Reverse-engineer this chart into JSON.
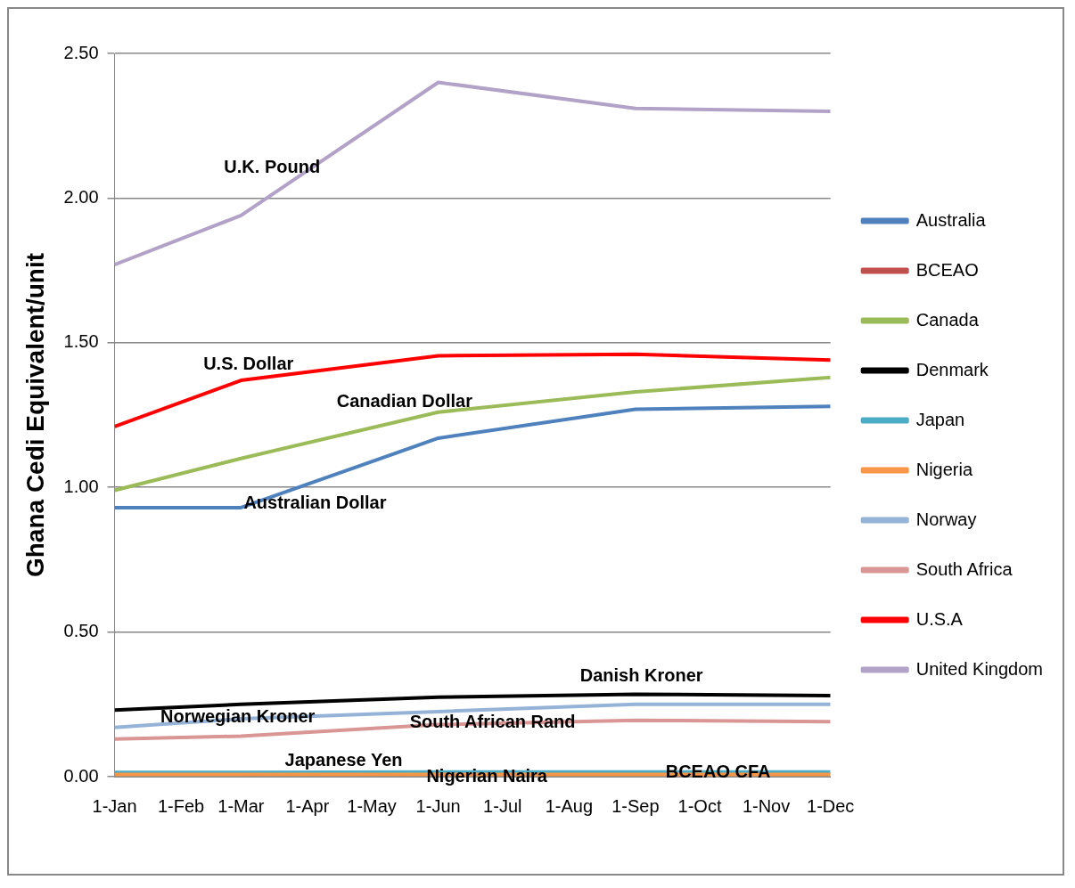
{
  "chart_data": {
    "type": "line",
    "ylabel": "Ghana Cedi Equivalent/unit",
    "x": [
      "--01-01",
      "--03-01",
      "--06-01",
      "--09-01",
      "--12-01"
    ],
    "xlim": [
      "--01-01",
      "--12-01"
    ],
    "xticks": [
      {
        "value": "--01-01",
        "label": "1-Jan"
      },
      {
        "value": "--02-01",
        "label": "1-Feb"
      },
      {
        "value": "--03-01",
        "label": "1-Mar"
      },
      {
        "value": "--04-01",
        "label": "1-Apr"
      },
      {
        "value": "--05-01",
        "label": "1-May"
      },
      {
        "value": "--06-01",
        "label": "1-Jun"
      },
      {
        "value": "--07-01",
        "label": "1-Jul"
      },
      {
        "value": "--08-01",
        "label": "1-Aug"
      },
      {
        "value": "--09-01",
        "label": "1-Sep"
      },
      {
        "value": "--10-01",
        "label": "1-Oct"
      },
      {
        "value": "--11-01",
        "label": "1-Nov"
      },
      {
        "value": "--12-01",
        "label": "1-Dec"
      }
    ],
    "ylim": [
      0,
      2.5
    ],
    "yticks": [
      {
        "value": 0,
        "label": "0.00"
      },
      {
        "value": 0.5,
        "label": "0.50"
      },
      {
        "value": 1,
        "label": "1.00"
      },
      {
        "value": 1.5,
        "label": "1.50"
      },
      {
        "value": 2,
        "label": "2.00"
      },
      {
        "value": 2.5,
        "label": "2.50"
      }
    ],
    "grid": "y",
    "legend": "right",
    "marker": "none",
    "line_style": "solid",
    "series": [
      {
        "name": "Australia",
        "color": "#4f81bd",
        "values": [
          0.93,
          0.93,
          1.17,
          1.27,
          1.28
        ]
      },
      {
        "name": "BCEAO",
        "color": "#c0504d",
        "values": [
          null,
          null,
          null,
          null,
          null
        ]
      },
      {
        "name": "Canada",
        "color": "#9bbb59",
        "values": [
          0.99,
          1.1,
          1.26,
          1.33,
          1.38
        ]
      },
      {
        "name": "Denmark",
        "color": "#000000",
        "values": [
          0.23,
          0.25,
          0.275,
          0.285,
          0.28
        ]
      },
      {
        "name": "Japan",
        "color": "#4bacc6",
        "values": [
          0.015,
          0.015,
          0.016,
          0.016,
          0.016
        ]
      },
      {
        "name": "Nigeria",
        "color": "#f79646",
        "values": [
          0.008,
          0.008,
          0.008,
          0.008,
          0.008
        ]
      },
      {
        "name": "Norway",
        "color": "#95b3d7",
        "values": [
          0.17,
          0.2,
          0.225,
          0.25,
          0.25
        ]
      },
      {
        "name": "South Africa",
        "color": "#d99694",
        "values": [
          0.13,
          0.14,
          0.18,
          0.195,
          0.19
        ]
      },
      {
        "name": "U.S.A",
        "color": "#ff0000",
        "values": [
          1.21,
          1.37,
          1.455,
          1.46,
          1.44
        ]
      },
      {
        "name": "United Kingdom",
        "color": "#b3a2c7",
        "values": [
          1.77,
          1.94,
          2.4,
          2.31,
          2.3
        ]
      }
    ],
    "annotations": [
      "U.K. Pound",
      "U.S. Dollar",
      "Canadian Dollar",
      "Australian Dollar",
      "Danish Kroner",
      "Norwegian Kroner",
      "South African Rand",
      "Japanese Yen",
      "Nigerian Naira",
      "BCEAO CFA"
    ]
  }
}
